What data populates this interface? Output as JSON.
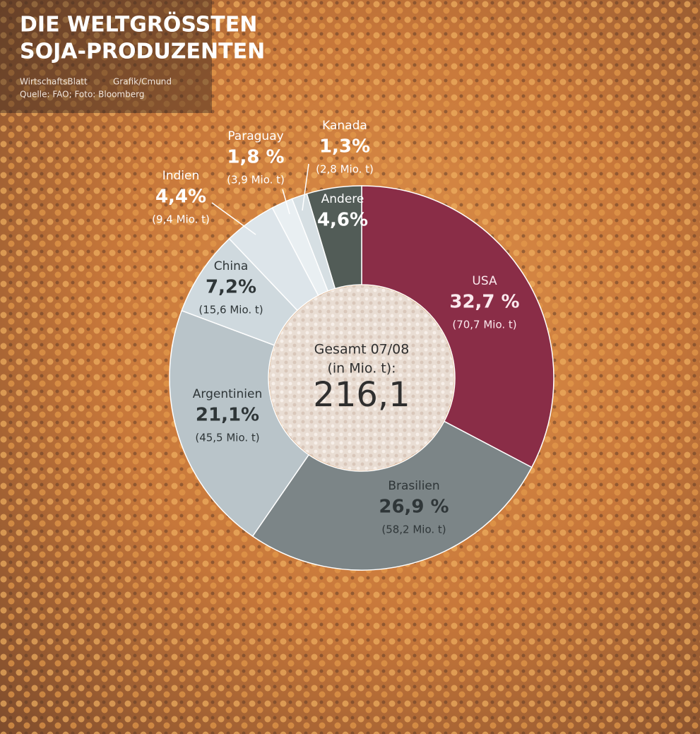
{
  "chart_data": {
    "type": "donut",
    "title": [
      "DIE WELTGRÖSSTEN",
      "SOJA-PRODUZENTEN"
    ],
    "credits": [
      "WirtschaftsBlatt",
      "Grafik/Cmund",
      "Quelle: FAO; Foto: Bloomberg"
    ],
    "categories": [
      "USA",
      "Brasilien",
      "Argentinien",
      "China",
      "Indien",
      "Paraguay",
      "Kanada",
      "Andere"
    ],
    "values": [
      32.7,
      26.9,
      21.1,
      7.2,
      4.4,
      1.8,
      1.3,
      4.6
    ],
    "value_labels": [
      "32,7 %",
      "26,9 %",
      "21,1%",
      "7,2%",
      "4,4%",
      "1,8 %",
      "1,3%",
      "4,6%"
    ],
    "amounts": [
      70.7,
      58.2,
      45.5,
      15.6,
      9.4,
      3.9,
      2.8,
      null
    ],
    "amount_labels": [
      "(70,7 Mio. t)",
      "(58,2 Mio. t)",
      "(45,5 Mio. t)",
      "(15,6 Mio. t)",
      "(9,4 Mio. t)",
      "(3,9 Mio. t)",
      "(2,8 Mio. t)",
      null
    ],
    "colors": [
      "#8a2d47",
      "#7c8587",
      "#b9c4c9",
      "#cfd9de",
      "#dde5ea",
      "#e9eff2",
      "#d6dfe3",
      "#525c57"
    ],
    "center_text": [
      "Gesamt 07/08",
      "(in Mio. t):"
    ],
    "total": {
      "value": 216.1,
      "label": "216,1"
    }
  }
}
